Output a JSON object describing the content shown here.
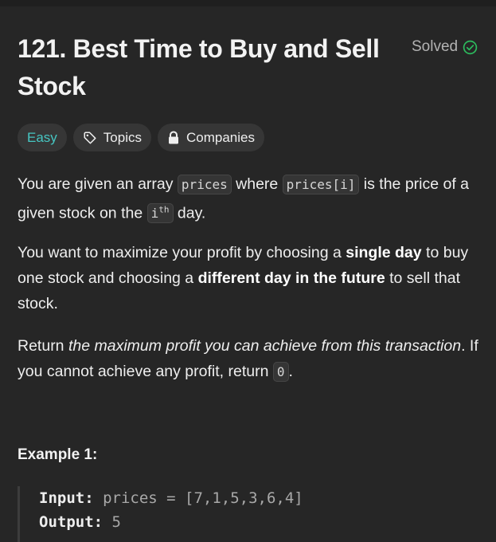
{
  "problem": {
    "title": "121. Best Time to Buy and Sell Stock",
    "status": "Solved"
  },
  "tags": {
    "difficulty": "Easy",
    "topics": "Topics",
    "companies": "Companies"
  },
  "description": {
    "p1": {
      "t1": "You are given an array ",
      "c1": "prices",
      "t2": " where ",
      "c2": "prices[i]",
      "t3": " is the price of a given stock on the ",
      "c3_base": "i",
      "c3_sup": "th",
      "t4": " day."
    },
    "p2": {
      "t1": "You want to maximize your profit by choosing a ",
      "b1": "single day",
      "t2": " to buy one stock and choosing a ",
      "b2": "different day in the future",
      "t3": " to sell that stock."
    },
    "p3": {
      "t1": "Return ",
      "i1": "the maximum profit you can achieve from this transaction",
      "t2": ". If you cannot achieve any profit, return ",
      "c1": "0",
      "t3": "."
    }
  },
  "example1": {
    "heading": "Example 1:",
    "input_label": "Input:",
    "input_value": "prices = [7,1,5,3,6,4]",
    "output_label": "Output:",
    "output_value": "5"
  },
  "colors": {
    "background": "#262626",
    "easy": "#46c6c2",
    "solved_check": "#2cbb5d"
  }
}
